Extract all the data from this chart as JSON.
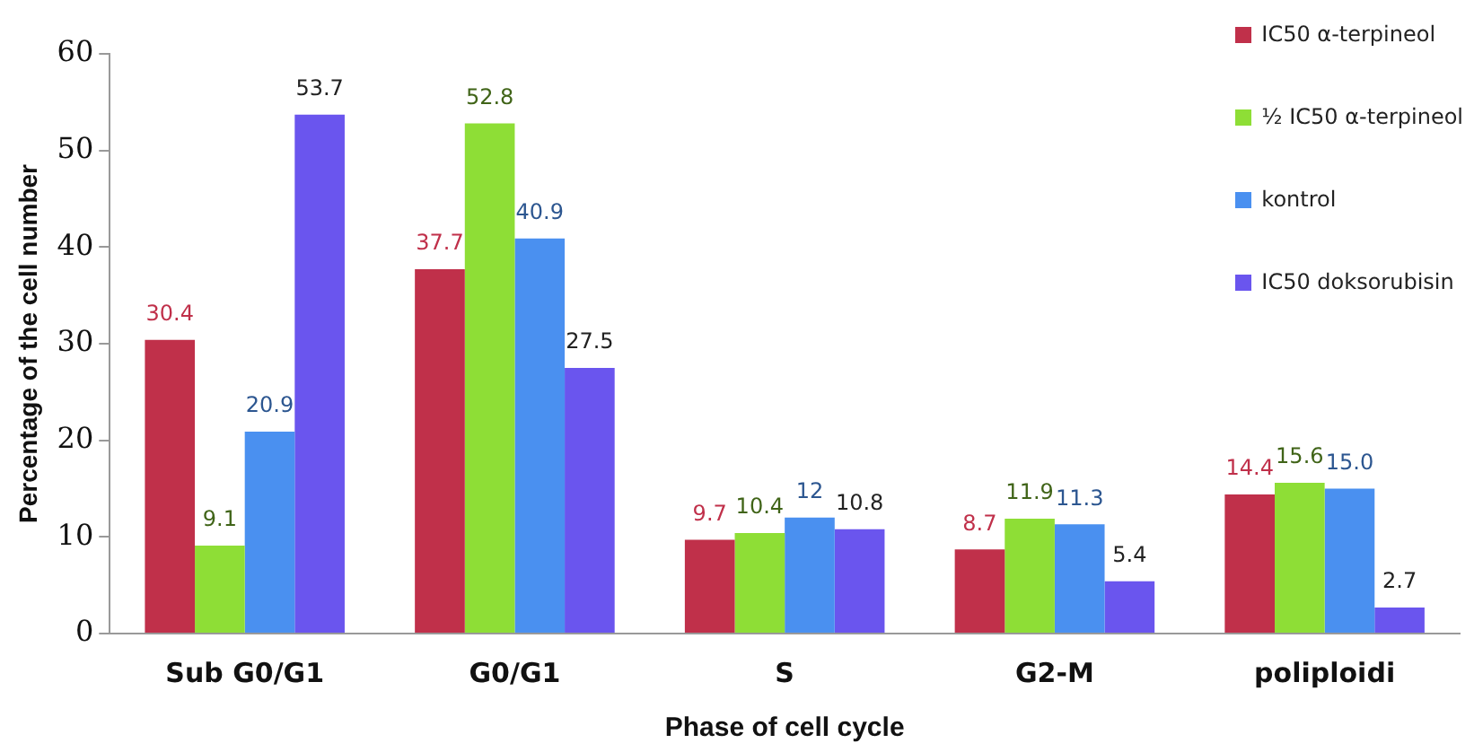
{
  "chart_data": {
    "type": "bar",
    "xlabel": "Phase of cell cycle",
    "ylabel": "Percentage of the cell number",
    "categories": [
      "Sub G0/G1",
      "G0/G1",
      "S",
      "G2-M",
      "poliploidi"
    ],
    "series": [
      {
        "name": "IC50 α-terpineol",
        "color": "#c0304a",
        "values": [
          30.4,
          37.7,
          9.7,
          8.7,
          14.4
        ],
        "value_labels": [
          "30.4",
          "37.7",
          "9.7",
          "8.7",
          "14.4"
        ]
      },
      {
        "name": "½ IC50 α-terpineol",
        "color": "#8ede36",
        "values": [
          9.1,
          52.8,
          10.4,
          11.9,
          15.6
        ],
        "value_labels": [
          "9.1",
          "52.8",
          "10.4",
          "11.9",
          "15.6"
        ]
      },
      {
        "name": "kontrol",
        "color": "#4a90f0",
        "values": [
          20.9,
          40.9,
          12,
          11.3,
          15.0
        ],
        "value_labels": [
          "20.9",
          "40.9",
          "12",
          "11.3",
          "15.0"
        ]
      },
      {
        "name": "IC50 doksorubisin",
        "color": "#6a55ee",
        "values": [
          53.7,
          27.5,
          10.8,
          5.4,
          2.7
        ],
        "value_labels": [
          "53.7",
          "27.5",
          "10.8",
          "5.4",
          "2.7"
        ]
      }
    ],
    "ylim": [
      0,
      60
    ],
    "yticks": [
      0,
      10,
      20,
      30,
      40,
      50,
      60
    ],
    "grid": false,
    "legend": "top right"
  }
}
